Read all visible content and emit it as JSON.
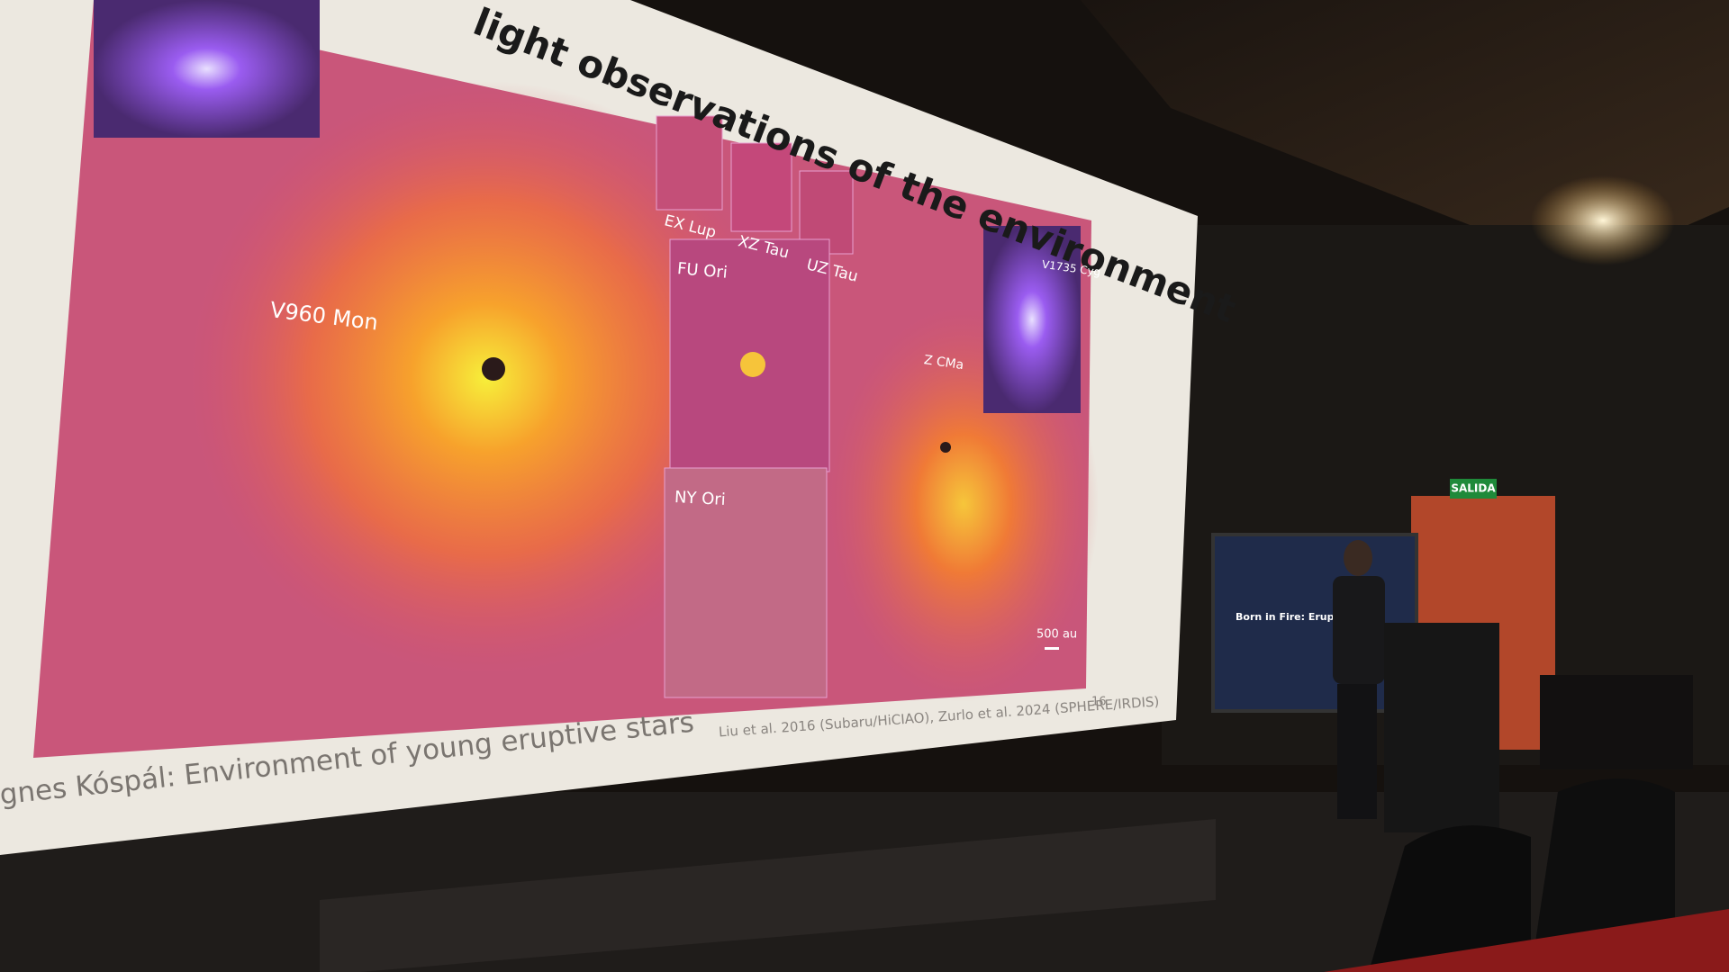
{
  "slide": {
    "title": "light observations of the environment",
    "main_target": "V960 Mon",
    "panels": [
      "EX Lup",
      "XZ Tau",
      "UZ Tau",
      "FU Ori",
      "NY Ori"
    ],
    "z_target": "Z CMa",
    "inset_target": "V1735 Cyg",
    "scale_bar": "500 au",
    "citation": "Liu et al. 2016 (Subaru/HiCIAO), Zurlo et al. 2024 (SPHERE/IRDIS)",
    "page_number": "16",
    "footer": "gnes Kóspál: Environment of young eruptive stars"
  },
  "room": {
    "exit_sign": "SALIDA",
    "monitor_title": "Born in Fire: Eruptiv"
  }
}
